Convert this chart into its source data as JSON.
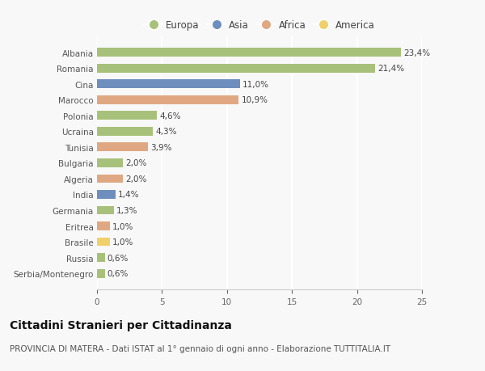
{
  "categories": [
    "Serbia/Montenegro",
    "Russia",
    "Brasile",
    "Eritrea",
    "Germania",
    "India",
    "Algeria",
    "Bulgaria",
    "Tunisia",
    "Ucraina",
    "Polonia",
    "Marocco",
    "Cina",
    "Romania",
    "Albania"
  ],
  "values": [
    0.6,
    0.6,
    1.0,
    1.0,
    1.3,
    1.4,
    2.0,
    2.0,
    3.9,
    4.3,
    4.6,
    10.9,
    11.0,
    21.4,
    23.4
  ],
  "labels": [
    "0,6%",
    "0,6%",
    "1,0%",
    "1,0%",
    "1,3%",
    "1,4%",
    "2,0%",
    "2,0%",
    "3,9%",
    "4,3%",
    "4,6%",
    "10,9%",
    "11,0%",
    "21,4%",
    "23,4%"
  ],
  "continents": [
    "Europa",
    "Europa",
    "America",
    "Africa",
    "Europa",
    "Asia",
    "Africa",
    "Europa",
    "Africa",
    "Europa",
    "Europa",
    "Africa",
    "Asia",
    "Europa",
    "Europa"
  ],
  "continent_colors": {
    "Europa": "#a8c17a",
    "Asia": "#6e8fbd",
    "Africa": "#e0a882",
    "America": "#f0d06a"
  },
  "legend_items": [
    "Europa",
    "Asia",
    "Africa",
    "America"
  ],
  "xlim": [
    0,
    25
  ],
  "xticks": [
    0,
    5,
    10,
    15,
    20,
    25
  ],
  "title": "Cittadini Stranieri per Cittadinanza",
  "subtitle": "PROVINCIA DI MATERA - Dati ISTAT al 1° gennaio di ogni anno - Elaborazione TUTTITALIA.IT",
  "bg_color": "#f8f8f8",
  "grid_color": "#ffffff",
  "bar_height": 0.55,
  "title_fontsize": 10,
  "subtitle_fontsize": 7.5,
  "label_fontsize": 7.5,
  "tick_fontsize": 7.5,
  "legend_fontsize": 8.5
}
